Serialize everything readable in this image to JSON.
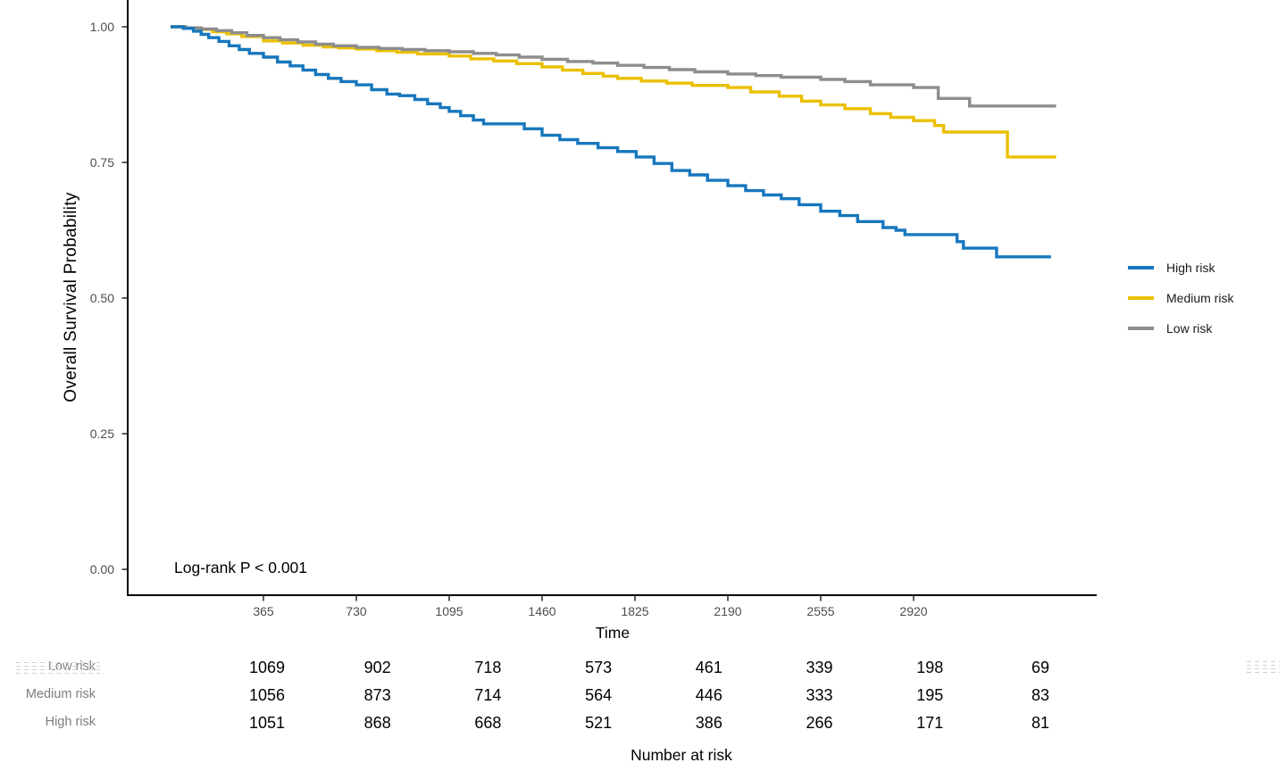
{
  "chart_data": {
    "type": "line",
    "subtype": "kaplan-meier-step",
    "title": "",
    "xlabel": "Time",
    "ylabel": "Overall Survival Probability",
    "annotation": "Log-rank P < 0.001",
    "xlim": [
      0,
      3650
    ],
    "ylim": [
      0,
      1.0
    ],
    "grid": false,
    "legend_position": "right",
    "x_ticks": [
      "365",
      "730",
      "1095",
      "1460",
      "1825",
      "2190",
      "2555",
      "2920"
    ],
    "y_ticks": [
      "1.00",
      "0.75",
      "0.50",
      "0.25",
      "0.00"
    ],
    "axis_color": "#000000",
    "tick_label_color": "#4d4d4d",
    "series": [
      {
        "name": "High risk",
        "color": "#1777bd",
        "points": [
          [
            0,
            1.0
          ],
          [
            50,
            0.997
          ],
          [
            90,
            0.992
          ],
          [
            120,
            0.986
          ],
          [
            150,
            0.98
          ],
          [
            190,
            0.973
          ],
          [
            230,
            0.965
          ],
          [
            270,
            0.958
          ],
          [
            310,
            0.951
          ],
          [
            365,
            0.944
          ],
          [
            420,
            0.935
          ],
          [
            470,
            0.928
          ],
          [
            520,
            0.92
          ],
          [
            570,
            0.912
          ],
          [
            620,
            0.905
          ],
          [
            670,
            0.899
          ],
          [
            730,
            0.893
          ],
          [
            790,
            0.884
          ],
          [
            850,
            0.876
          ],
          [
            900,
            0.873
          ],
          [
            960,
            0.866
          ],
          [
            1010,
            0.858
          ],
          [
            1060,
            0.851
          ],
          [
            1095,
            0.844
          ],
          [
            1140,
            0.836
          ],
          [
            1190,
            0.828
          ],
          [
            1230,
            0.821
          ],
          [
            1390,
            0.812
          ],
          [
            1460,
            0.8
          ],
          [
            1530,
            0.792
          ],
          [
            1600,
            0.785
          ],
          [
            1680,
            0.777
          ],
          [
            1757,
            0.77
          ],
          [
            1830,
            0.76
          ],
          [
            1900,
            0.748
          ],
          [
            1970,
            0.735
          ],
          [
            2040,
            0.727
          ],
          [
            2110,
            0.717
          ],
          [
            2190,
            0.707
          ],
          [
            2260,
            0.698
          ],
          [
            2330,
            0.69
          ],
          [
            2400,
            0.683
          ],
          [
            2470,
            0.672
          ],
          [
            2555,
            0.66
          ],
          [
            2630,
            0.652
          ],
          [
            2700,
            0.641
          ],
          [
            2800,
            0.63
          ],
          [
            2851,
            0.625
          ],
          [
            2886,
            0.617
          ],
          [
            3091,
            0.604
          ],
          [
            3116,
            0.592
          ],
          [
            3246,
            0.576
          ],
          [
            3460,
            0.576
          ]
        ]
      },
      {
        "name": "Medium risk",
        "color": "#ebc000",
        "points": [
          [
            0,
            1.0
          ],
          [
            55,
            0.998
          ],
          [
            110,
            0.995
          ],
          [
            165,
            0.991
          ],
          [
            220,
            0.987
          ],
          [
            280,
            0.982
          ],
          [
            365,
            0.974
          ],
          [
            440,
            0.97
          ],
          [
            520,
            0.966
          ],
          [
            600,
            0.963
          ],
          [
            660,
            0.961
          ],
          [
            730,
            0.959
          ],
          [
            810,
            0.956
          ],
          [
            890,
            0.953
          ],
          [
            970,
            0.95
          ],
          [
            1095,
            0.946
          ],
          [
            1180,
            0.941
          ],
          [
            1270,
            0.937
          ],
          [
            1360,
            0.932
          ],
          [
            1460,
            0.926
          ],
          [
            1540,
            0.92
          ],
          [
            1620,
            0.914
          ],
          [
            1700,
            0.909
          ],
          [
            1757,
            0.905
          ],
          [
            1850,
            0.9
          ],
          [
            1950,
            0.896
          ],
          [
            2050,
            0.892
          ],
          [
            2190,
            0.888
          ],
          [
            2280,
            0.88
          ],
          [
            2392,
            0.872
          ],
          [
            2480,
            0.863
          ],
          [
            2555,
            0.856
          ],
          [
            2650,
            0.849
          ],
          [
            2750,
            0.84
          ],
          [
            2830,
            0.833
          ],
          [
            2920,
            0.827
          ],
          [
            3003,
            0.818
          ],
          [
            3038,
            0.806
          ],
          [
            3289,
            0.76
          ],
          [
            3480,
            0.76
          ]
        ]
      },
      {
        "name": "Low risk",
        "color": "#8d8d8d",
        "points": [
          [
            0,
            1.0
          ],
          [
            60,
            0.998
          ],
          [
            120,
            0.996
          ],
          [
            180,
            0.993
          ],
          [
            240,
            0.989
          ],
          [
            300,
            0.984
          ],
          [
            365,
            0.98
          ],
          [
            430,
            0.976
          ],
          [
            500,
            0.972
          ],
          [
            570,
            0.968
          ],
          [
            640,
            0.965
          ],
          [
            730,
            0.962
          ],
          [
            820,
            0.96
          ],
          [
            910,
            0.958
          ],
          [
            1000,
            0.956
          ],
          [
            1095,
            0.954
          ],
          [
            1190,
            0.951
          ],
          [
            1280,
            0.948
          ],
          [
            1370,
            0.944
          ],
          [
            1460,
            0.94
          ],
          [
            1560,
            0.936
          ],
          [
            1660,
            0.933
          ],
          [
            1757,
            0.929
          ],
          [
            1860,
            0.925
          ],
          [
            1960,
            0.921
          ],
          [
            2060,
            0.917
          ],
          [
            2190,
            0.913
          ],
          [
            2300,
            0.91
          ],
          [
            2400,
            0.907
          ],
          [
            2555,
            0.903
          ],
          [
            2650,
            0.899
          ],
          [
            2750,
            0.893
          ],
          [
            2920,
            0.888
          ],
          [
            3017,
            0.868
          ],
          [
            3140,
            0.854
          ],
          [
            3480,
            0.854
          ]
        ]
      }
    ],
    "risk_table": {
      "title": "Number at risk",
      "rows": [
        {
          "label": "Low risk",
          "counts": [
            "1069",
            "902",
            "718",
            "573",
            "461",
            "339",
            "198",
            "69"
          ]
        },
        {
          "label": "Medium risk",
          "counts": [
            "1056",
            "873",
            "714",
            "564",
            "446",
            "333",
            "195",
            "83"
          ]
        },
        {
          "label": "High risk",
          "counts": [
            "1051",
            "868",
            "668",
            "521",
            "386",
            "266",
            "171",
            "81"
          ]
        }
      ]
    }
  }
}
